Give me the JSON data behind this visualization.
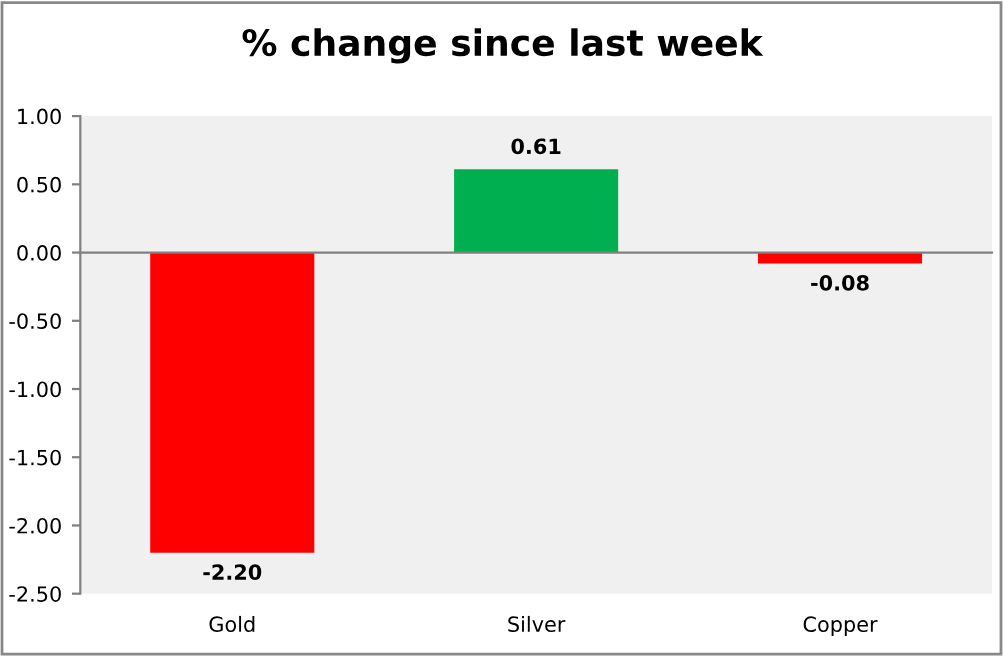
{
  "chart_data": {
    "type": "bar",
    "title": "% change since last week",
    "categories": [
      "Gold",
      "Silver",
      "Copper"
    ],
    "values": [
      -2.2,
      0.61,
      -0.08
    ],
    "colors": [
      "#ff0000",
      "#00b050",
      "#ff0000"
    ],
    "value_labels": [
      "-2.20",
      "0.61",
      "-0.08"
    ],
    "ylim": [
      -2.5,
      1.0
    ],
    "yticks": [
      {
        "value": 1.0,
        "label": "1.00"
      },
      {
        "value": 0.5,
        "label": "0.50"
      },
      {
        "value": 0.0,
        "label": "0.00"
      },
      {
        "value": -0.5,
        "label": "-0.50"
      },
      {
        "value": -1.0,
        "label": "-1.00"
      },
      {
        "value": -1.5,
        "label": "-1.50"
      },
      {
        "value": -2.0,
        "label": "-2.00"
      },
      {
        "value": -2.5,
        "label": "-2.50"
      }
    ],
    "legend": false
  }
}
